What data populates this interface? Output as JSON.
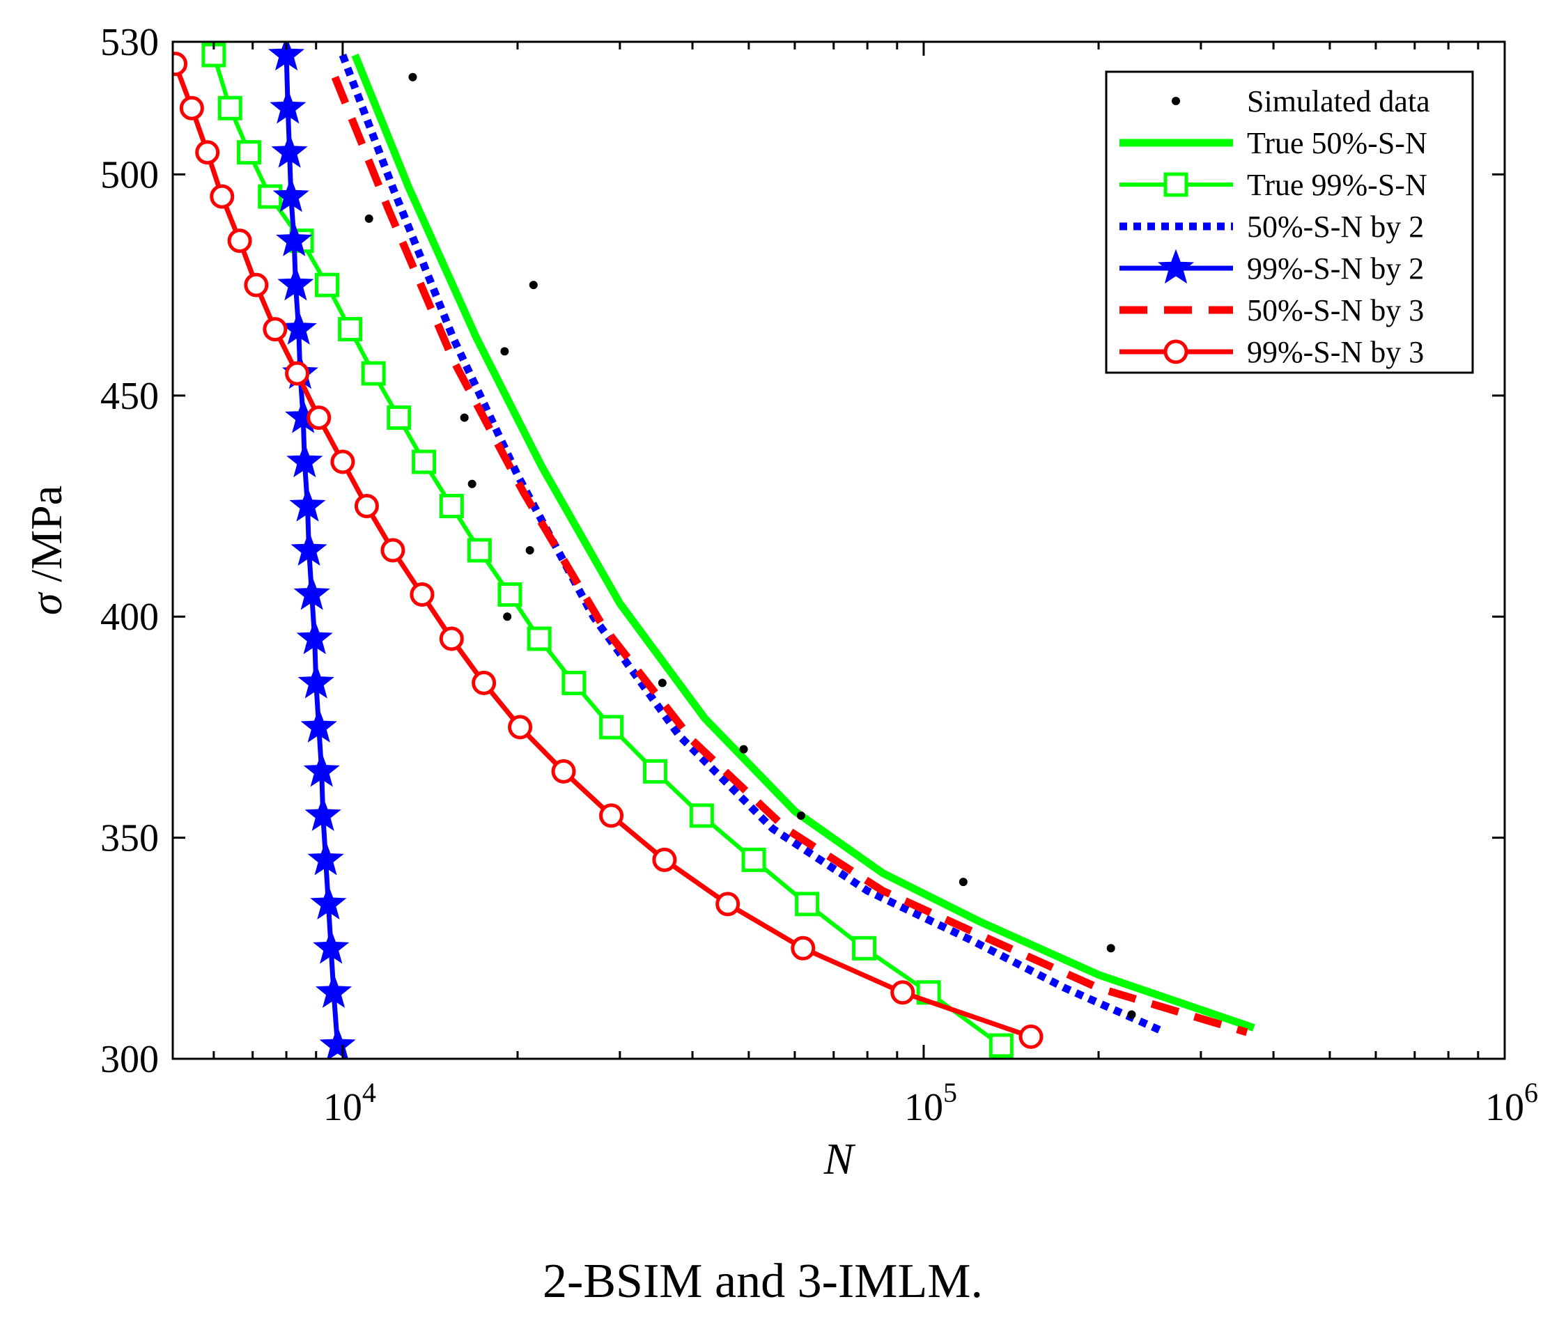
{
  "chart_data": {
    "type": "line",
    "caption": "2-BSIM and 3-IMLM.",
    "xlabel": "N",
    "ylabel_symbol": "σ",
    "ylabel_unit": " /MPa",
    "x_scale": "log",
    "xlim": [
      5100,
      1000000
    ],
    "ylim": [
      300,
      530
    ],
    "x_ticks": [
      {
        "value": 10000,
        "base": "10",
        "exp": "4"
      },
      {
        "value": 100000,
        "base": "10",
        "exp": "5"
      },
      {
        "value": 1000000,
        "base": "10",
        "exp": "6"
      }
    ],
    "y_ticks": [
      300,
      350,
      400,
      450,
      500,
      530
    ],
    "legend_position": "top-right",
    "series": [
      {
        "name": "Simulated data",
        "style": "dots",
        "color": "#000000",
        "points": [
          [
            13200,
            522
          ],
          [
            11100,
            490
          ],
          [
            21300,
            475
          ],
          [
            19000,
            460
          ],
          [
            16200,
            445
          ],
          [
            16700,
            430
          ],
          [
            21000,
            415
          ],
          [
            19200,
            400
          ],
          [
            35500,
            385
          ],
          [
            49000,
            370
          ],
          [
            61500,
            355
          ],
          [
            117000,
            340
          ],
          [
            210000,
            325
          ],
          [
            228000,
            310
          ]
        ]
      },
      {
        "name": "True 50%-S-N",
        "style": "solid-thick",
        "color": "#00ff00",
        "points": [
          [
            10500,
            527
          ],
          [
            13000,
            497
          ],
          [
            17000,
            463
          ],
          [
            22000,
            434
          ],
          [
            30000,
            403
          ],
          [
            42000,
            377
          ],
          [
            60000,
            356
          ],
          [
            85000,
            342
          ],
          [
            125000,
            331
          ],
          [
            200000,
            319
          ],
          [
            370000,
            307
          ]
        ]
      },
      {
        "name": "True 99%-S-N",
        "style": "solid-square",
        "color": "#00ff00",
        "points": [
          [
            6000,
            527
          ],
          [
            6400,
            515
          ],
          [
            6900,
            505
          ],
          [
            7500,
            495
          ],
          [
            8500,
            485
          ],
          [
            9400,
            475
          ],
          [
            10300,
            465
          ],
          [
            11300,
            455
          ],
          [
            12500,
            445
          ],
          [
            13800,
            435
          ],
          [
            15400,
            425
          ],
          [
            17200,
            415
          ],
          [
            19400,
            405
          ],
          [
            21800,
            395
          ],
          [
            25000,
            385
          ],
          [
            29000,
            375
          ],
          [
            34500,
            365
          ],
          [
            41500,
            355
          ],
          [
            51000,
            345
          ],
          [
            63000,
            335
          ],
          [
            79000,
            325
          ],
          [
            102000,
            315
          ],
          [
            136000,
            303
          ]
        ]
      },
      {
        "name": "50%-S-N by 2",
        "style": "dotted",
        "color": "#0000ff",
        "points": [
          [
            10000,
            527
          ],
          [
            12200,
            497
          ],
          [
            15500,
            463
          ],
          [
            20000,
            432
          ],
          [
            27000,
            400
          ],
          [
            38000,
            373
          ],
          [
            55000,
            352
          ],
          [
            80000,
            338
          ],
          [
            120000,
            327
          ],
          [
            175000,
            316
          ],
          [
            260000,
            306
          ]
        ]
      },
      {
        "name": "99%-S-N by 2",
        "style": "solid-star",
        "color": "#0000ff",
        "points": [
          [
            8000,
            527
          ],
          [
            8050,
            515
          ],
          [
            8100,
            505
          ],
          [
            8150,
            495
          ],
          [
            8250,
            485
          ],
          [
            8300,
            475
          ],
          [
            8400,
            465
          ],
          [
            8450,
            455
          ],
          [
            8550,
            445
          ],
          [
            8600,
            435
          ],
          [
            8700,
            425
          ],
          [
            8750,
            415
          ],
          [
            8850,
            405
          ],
          [
            8950,
            395
          ],
          [
            9000,
            385
          ],
          [
            9100,
            375
          ],
          [
            9200,
            365
          ],
          [
            9250,
            355
          ],
          [
            9350,
            345
          ],
          [
            9450,
            335
          ],
          [
            9550,
            325
          ],
          [
            9650,
            315
          ],
          [
            9800,
            303
          ]
        ]
      },
      {
        "name": "50%-S-N by 3",
        "style": "dashed",
        "color": "#ff0000",
        "points": [
          [
            9700,
            522
          ],
          [
            12000,
            492
          ],
          [
            15500,
            458
          ],
          [
            20500,
            428
          ],
          [
            28000,
            398
          ],
          [
            40000,
            372
          ],
          [
            58000,
            352
          ],
          [
            85000,
            338
          ],
          [
            130000,
            327
          ],
          [
            200000,
            316
          ],
          [
            360000,
            306
          ]
        ]
      },
      {
        "name": "99%-S-N by 3",
        "style": "solid-circle",
        "color": "#ff0000",
        "points": [
          [
            5150,
            525
          ],
          [
            5500,
            515
          ],
          [
            5850,
            505
          ],
          [
            6200,
            495
          ],
          [
            6650,
            485
          ],
          [
            7100,
            475
          ],
          [
            7650,
            465
          ],
          [
            8350,
            455
          ],
          [
            9100,
            445
          ],
          [
            10000,
            435
          ],
          [
            11000,
            425
          ],
          [
            12200,
            415
          ],
          [
            13700,
            405
          ],
          [
            15400,
            395
          ],
          [
            17500,
            385
          ],
          [
            20200,
            375
          ],
          [
            24000,
            365
          ],
          [
            29000,
            355
          ],
          [
            35800,
            345
          ],
          [
            46000,
            335
          ],
          [
            62000,
            325
          ],
          [
            92000,
            315
          ],
          [
            153000,
            305
          ]
        ]
      }
    ]
  }
}
